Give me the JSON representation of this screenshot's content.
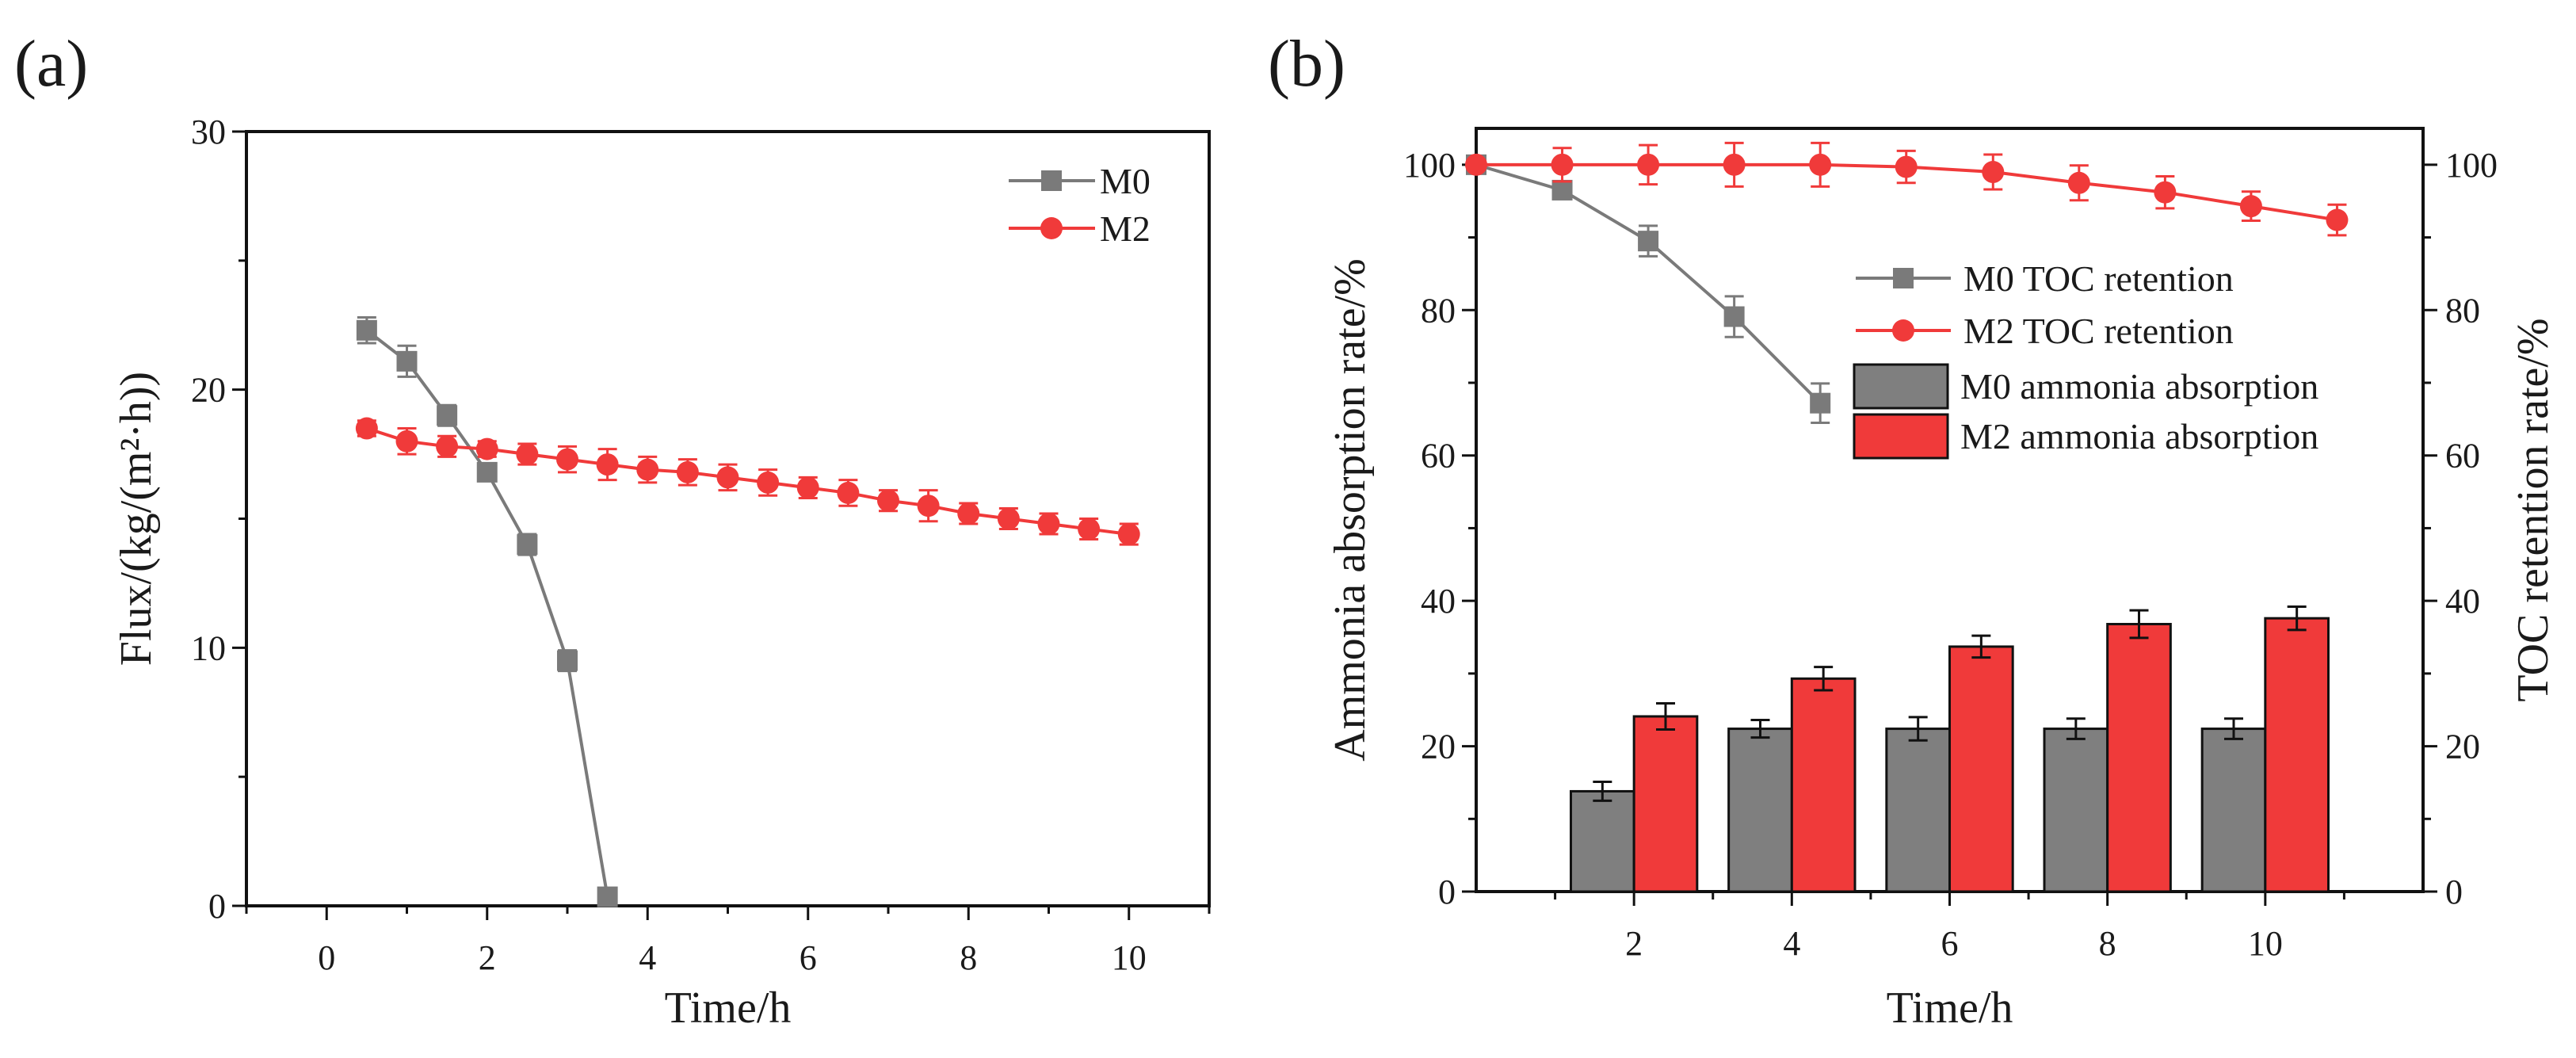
{
  "chart_data": [
    {
      "panel_label": "(a)",
      "type": "line",
      "xlabel": "Time/h",
      "ylabel": "Flux/(kg/(m²·h))",
      "xlim": [
        -1,
        11
      ],
      "ylim": [
        0,
        30
      ],
      "xticks": [
        0,
        2,
        4,
        6,
        8,
        10
      ],
      "yticks": [
        0,
        10,
        20,
        30
      ],
      "xminor": [
        -1,
        1,
        3,
        5,
        7,
        9,
        11
      ],
      "yminor": [
        5,
        15,
        25
      ],
      "grid": false,
      "legend_position": "top-right",
      "series": [
        {
          "name": "M0",
          "color": "#7a7a7a",
          "marker": "square",
          "x": [
            0.5,
            1,
            1.5,
            2,
            2.5,
            3,
            3.5
          ],
          "y": [
            22.3,
            21.1,
            19.0,
            16.8,
            14.0,
            9.5,
            0.35
          ],
          "err": [
            0.5,
            0.6,
            0.4,
            0.3,
            0.4,
            0.4,
            0.2
          ]
        },
        {
          "name": "M2",
          "color": "#f03a3a",
          "marker": "circle",
          "x": [
            0.5,
            1,
            1.5,
            2,
            2.5,
            3,
            3.5,
            4,
            4.5,
            5,
            5.5,
            6,
            6.5,
            7,
            7.5,
            8,
            8.5,
            9,
            9.5,
            10
          ],
          "y": [
            18.5,
            18.0,
            17.8,
            17.7,
            17.5,
            17.3,
            17.1,
            16.9,
            16.8,
            16.6,
            16.4,
            16.2,
            16.0,
            15.7,
            15.5,
            15.2,
            15.0,
            14.8,
            14.6,
            14.4
          ],
          "err": [
            0.3,
            0.5,
            0.4,
            0.3,
            0.4,
            0.5,
            0.6,
            0.5,
            0.5,
            0.5,
            0.5,
            0.4,
            0.5,
            0.4,
            0.6,
            0.4,
            0.4,
            0.4,
            0.4,
            0.4
          ]
        }
      ]
    },
    {
      "panel_label": "(b)",
      "type": "bar+line",
      "xlabel": "Time/h",
      "ylabel": "Ammonia absorption rate/%",
      "y2label": "TOC retention rate/%",
      "xlim": [
        0,
        12
      ],
      "ylim": [
        0,
        105
      ],
      "y2lim": [
        0,
        105
      ],
      "xticks": [
        2,
        4,
        6,
        8,
        10
      ],
      "yticks": [
        0,
        20,
        40,
        60,
        80,
        100
      ],
      "xminor": [
        1,
        3,
        5,
        7,
        9,
        11
      ],
      "yminor": [
        10,
        30,
        50,
        70,
        90
      ],
      "grid": false,
      "legend_position": "top-right",
      "bar_categories": [
        2,
        4,
        6,
        8,
        10
      ],
      "bars": [
        {
          "name": "M0 ammonia absorption",
          "color": "#7f7f7f",
          "values": [
            13.8,
            22.4,
            22.4,
            22.4,
            22.4
          ],
          "err": [
            1.3,
            1.2,
            1.6,
            1.4,
            1.4
          ]
        },
        {
          "name": "M2 ammonia absorption",
          "color": "#f03a3a",
          "values": [
            24.1,
            29.3,
            33.7,
            36.8,
            37.6
          ],
          "err": [
            1.8,
            1.6,
            1.5,
            1.9,
            1.6
          ]
        }
      ],
      "lines": [
        {
          "name": "M0 TOC retention",
          "color": "#7a7a7a",
          "marker": "square",
          "x": [
            0,
            1.09,
            2.18,
            3.27,
            4.36
          ],
          "y": [
            100,
            96.5,
            89.5,
            79.1,
            67.2
          ],
          "err": [
            0.4,
            0.8,
            2.1,
            2.8,
            2.7
          ]
        },
        {
          "name": "M2 TOC retention",
          "color": "#f03a3a",
          "marker": "circle",
          "x": [
            0,
            1.09,
            2.18,
            3.27,
            4.36,
            5.45,
            6.55,
            7.64,
            8.73,
            9.82,
            10.91
          ],
          "y": [
            100,
            100,
            100,
            100,
            100,
            99.7,
            99.0,
            97.5,
            96.2,
            94.3,
            92.4
          ],
          "err": [
            0.4,
            2.3,
            2.7,
            3.0,
            3.0,
            2.2,
            2.4,
            2.4,
            2.2,
            2.0,
            2.1
          ]
        }
      ]
    }
  ]
}
